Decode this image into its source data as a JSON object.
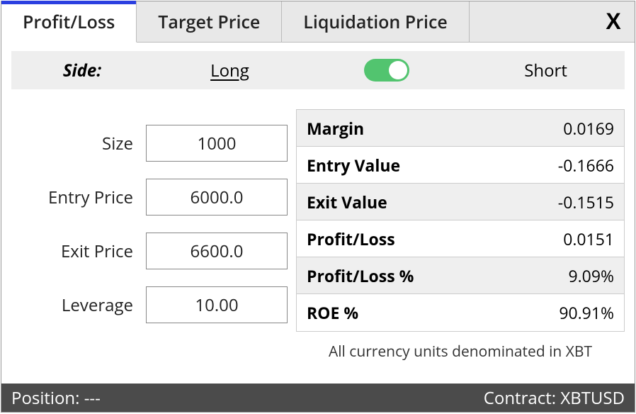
{
  "tabs": {
    "profit_loss": "Profit/Loss",
    "target_price": "Target Price",
    "liquidation_price": "Liquidation Price"
  },
  "close_glyph": "X",
  "side": {
    "label": "Side:",
    "long": "Long",
    "short": "Short",
    "toggle_on": true,
    "toggle_color": "#52c46f"
  },
  "inputs": {
    "size": {
      "label": "Size",
      "value": "1000"
    },
    "entry_price": {
      "label": "Entry Price",
      "value": "6000.0"
    },
    "exit_price": {
      "label": "Exit Price",
      "value": "6600.0"
    },
    "leverage": {
      "label": "Leverage",
      "value": "10.00"
    }
  },
  "results": {
    "rows": [
      {
        "key": "Margin",
        "value": "0.0169",
        "alt": true
      },
      {
        "key": "Entry Value",
        "value": "-0.1666",
        "alt": false
      },
      {
        "key": "Exit Value",
        "value": "-0.1515",
        "alt": true
      },
      {
        "key": "Profit/Loss",
        "value": "0.0151",
        "alt": false
      },
      {
        "key": "Profit/Loss %",
        "value": "9.09%",
        "alt": true
      },
      {
        "key": "ROE %",
        "value": "90.91%",
        "alt": false
      }
    ],
    "footnote": "All currency units denominated in XBT"
  },
  "status": {
    "position_label": "Position:",
    "position_value": "---",
    "contract_label": "Contract:",
    "contract_value": "XBTUSD"
  },
  "colors": {
    "tab_active_accent": "#2b3fe0",
    "tab_bg": "#e8e8e8",
    "side_bg": "#eeeeee",
    "alt_row": "#efefef",
    "status_bg": "#4b4b4b",
    "border": "#cccccc"
  }
}
